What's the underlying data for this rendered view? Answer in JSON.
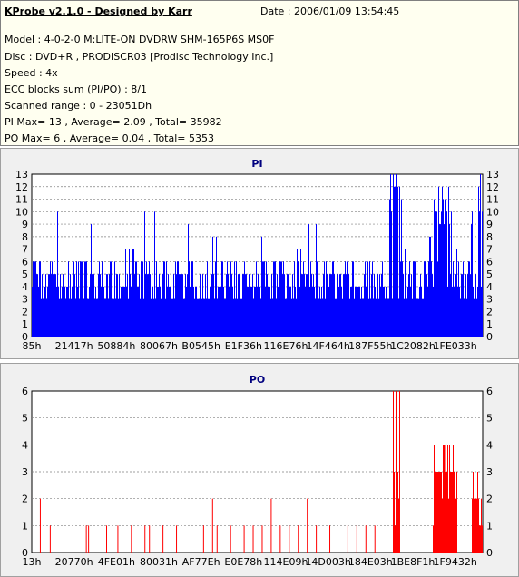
{
  "header": {
    "title": "KProbe v2.1.0 - Designed by Karr",
    "date": "Date : 2006/01/09 13:54:45",
    "model": "Model : 4-0-2-0 M:LITE-ON DVDRW SHM-165P6S MS0F",
    "disc": "Disc : DVD+R , PRODISCR03 [Prodisc Technology Inc.]",
    "speed": "Speed : 4x",
    "ecc": "ECC blocks sum (PI/PO) : 8/1",
    "range": "Scanned range : 0 - 23051Dh",
    "pi_stats": "PI Max= 13 , Average= 2.09 , Total= 35982",
    "po_stats": "PO Max= 6 , Average= 0.04 , Total= 5353"
  },
  "chart_data": [
    {
      "type": "bar",
      "title": "PI",
      "ylim": [
        0,
        13
      ],
      "yticks": [
        "0",
        "1",
        "2",
        "3",
        "4",
        "5",
        "6",
        "7",
        "8",
        "9",
        "10",
        "11",
        "12",
        "13"
      ],
      "xticks": [
        "85h",
        "21417h",
        "50884h",
        "80067h",
        "B0545h",
        "E1F36h",
        "116E76h",
        "14F464h",
        "187F55h",
        "1C2082h",
        "1FE033h"
      ],
      "color": "#0000ff",
      "grid": true,
      "profile": [
        [
          0.0,
          6
        ],
        [
          0.03,
          8
        ],
        [
          0.04,
          10
        ],
        [
          0.06,
          7
        ],
        [
          0.08,
          6
        ],
        [
          0.12,
          9
        ],
        [
          0.16,
          6
        ],
        [
          0.2,
          7
        ],
        [
          0.24,
          10
        ],
        [
          0.28,
          6
        ],
        [
          0.32,
          9
        ],
        [
          0.36,
          6
        ],
        [
          0.4,
          8
        ],
        [
          0.44,
          6
        ],
        [
          0.48,
          8
        ],
        [
          0.52,
          6
        ],
        [
          0.56,
          7
        ],
        [
          0.6,
          9
        ],
        [
          0.64,
          6
        ],
        [
          0.68,
          7
        ],
        [
          0.72,
          6
        ],
        [
          0.76,
          7
        ],
        [
          0.78,
          6
        ],
        [
          0.79,
          13
        ],
        [
          0.81,
          12
        ],
        [
          0.82,
          7
        ],
        [
          0.84,
          6
        ],
        [
          0.88,
          8
        ],
        [
          0.89,
          12
        ],
        [
          0.91,
          11
        ],
        [
          0.92,
          12
        ],
        [
          0.93,
          7
        ],
        [
          0.95,
          6
        ],
        [
          0.97,
          11
        ],
        [
          0.98,
          13
        ],
        [
          1.0,
          9
        ]
      ]
    },
    {
      "type": "bar",
      "title": "PO",
      "ylim": [
        0,
        6
      ],
      "yticks": [
        "0",
        "1",
        "2",
        "3",
        "4",
        "5",
        "6"
      ],
      "xticks": [
        "13h",
        "20770h",
        "4FE01h",
        "80031h",
        "AF77Eh",
        "E0E78h",
        "114E09h",
        "14D003h",
        "184E03h",
        "1BE8F1h",
        "1F9432h"
      ],
      "color": "#ff0000",
      "grid": true,
      "spikes": [
        [
          0.018,
          2
        ],
        [
          0.04,
          1
        ],
        [
          0.12,
          1
        ],
        [
          0.125,
          1
        ],
        [
          0.165,
          1
        ],
        [
          0.19,
          1
        ],
        [
          0.22,
          1
        ],
        [
          0.25,
          1
        ],
        [
          0.26,
          1
        ],
        [
          0.29,
          1
        ],
        [
          0.32,
          1
        ],
        [
          0.38,
          1
        ],
        [
          0.4,
          2
        ],
        [
          0.41,
          1
        ],
        [
          0.44,
          1
        ],
        [
          0.47,
          1
        ],
        [
          0.49,
          1
        ],
        [
          0.51,
          1
        ],
        [
          0.53,
          2
        ],
        [
          0.55,
          1
        ],
        [
          0.57,
          1
        ],
        [
          0.59,
          1
        ],
        [
          0.61,
          2
        ],
        [
          0.63,
          1
        ],
        [
          0.66,
          1
        ],
        [
          0.7,
          1
        ],
        [
          0.72,
          1
        ],
        [
          0.74,
          1
        ],
        [
          0.76,
          1
        ]
      ],
      "clusters": [
        [
          0.8,
          0.817,
          3,
          6
        ],
        [
          0.89,
          0.944,
          3,
          4
        ],
        [
          0.975,
          1.0,
          2,
          3
        ]
      ]
    }
  ]
}
